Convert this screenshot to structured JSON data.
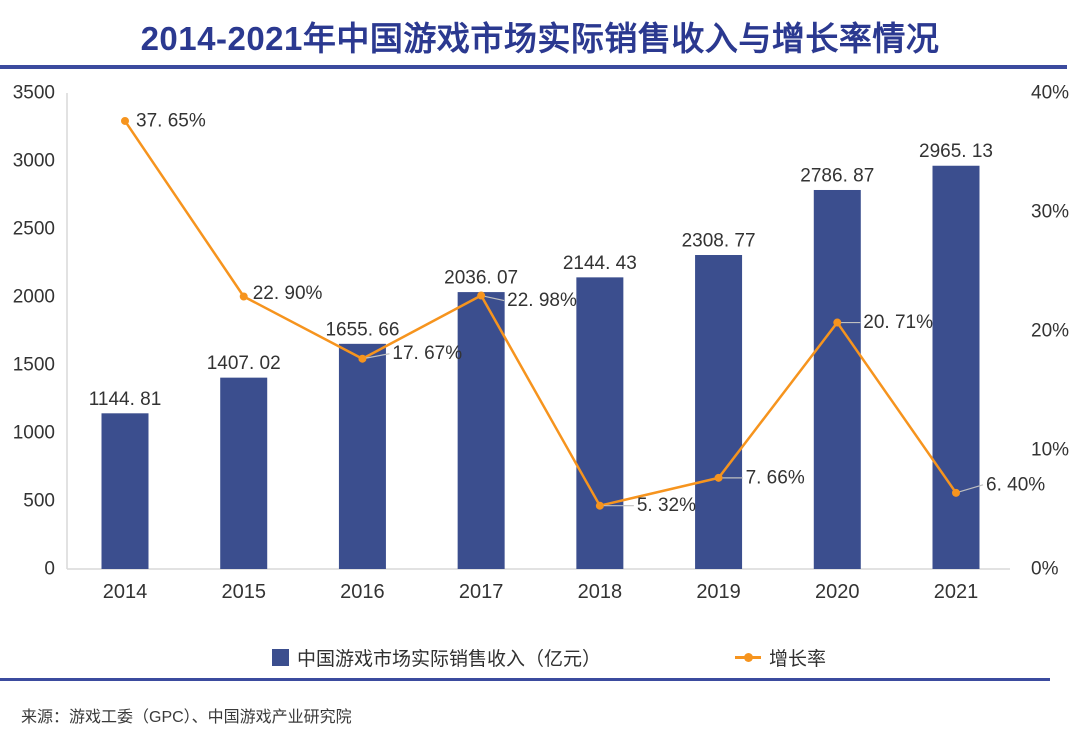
{
  "title": "2014-2021年中国游戏市场实际销售收入与增长率情况",
  "source_note": "来源：游戏工委（GPC）、中国游戏产业研究院",
  "colors": {
    "title_text": "#2B3990",
    "divider_line": "#3B4B9E",
    "bar_fill": "#3B4E8E",
    "line_stroke": "#F6941E",
    "axis_line": "#D9D9D9",
    "leader_line": "#C0C0C0",
    "label_text": "#333333"
  },
  "legend": {
    "revenue": {
      "label": "中国游戏市场实际销售收入（亿元）",
      "marker": "square-swatch"
    },
    "growth": {
      "label": "增长率",
      "marker": "line-dot-swatch"
    }
  },
  "chart_data": {
    "type": "bar+line combo",
    "categories": [
      "2014",
      "2015",
      "2016",
      "2017",
      "2018",
      "2019",
      "2020",
      "2021"
    ],
    "series": [
      {
        "name": "中国游戏市场实际销售收入（亿元）",
        "type": "bar",
        "axis": "left",
        "values": [
          1144.81,
          1407.02,
          1655.66,
          2036.07,
          2144.43,
          2308.77,
          2786.87,
          2965.13
        ],
        "labels": [
          "1144. 81",
          "1407. 02",
          "1655. 66",
          "2036. 07",
          "2144. 43",
          "2308. 77",
          "2786. 87",
          "2965. 13"
        ]
      },
      {
        "name": "增长率",
        "type": "line",
        "axis": "right",
        "values": [
          37.65,
          22.9,
          17.67,
          22.98,
          5.32,
          7.66,
          20.71,
          6.4
        ],
        "labels": [
          "37. 65%",
          "22. 90%",
          "17. 67%",
          "22. 98%",
          "5. 32%",
          "7. 66%",
          "20. 71%",
          "6. 40%"
        ]
      }
    ],
    "left_axis": {
      "min": 0,
      "max": 3500,
      "ticks": [
        "3500",
        "3000",
        "2500",
        "2000",
        "1500",
        "1000",
        "500",
        "0"
      ]
    },
    "right_axis": {
      "min": 0,
      "max": 40,
      "ticks": [
        "40%",
        "30%",
        "20%",
        "10%",
        "0%"
      ]
    },
    "grid": false,
    "legend_position": "bottom"
  }
}
